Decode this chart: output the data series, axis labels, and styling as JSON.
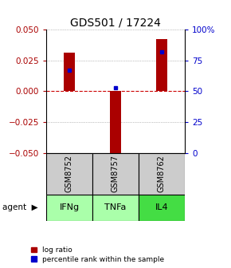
{
  "title": "GDS501 / 17224",
  "samples": [
    "GSM8752",
    "GSM8757",
    "GSM8762"
  ],
  "agents": [
    "IFNg",
    "TNFa",
    "IL4"
  ],
  "agent_colors": [
    "#aaffaa",
    "#aaffaa",
    "#44dd44"
  ],
  "log_ratios": [
    0.031,
    -0.054,
    0.042
  ],
  "percentile_ranks": [
    67,
    53,
    82
  ],
  "ylim_left": [
    -0.05,
    0.05
  ],
  "ylim_right": [
    0,
    100
  ],
  "left_yticks": [
    -0.05,
    -0.025,
    0,
    0.025,
    0.05
  ],
  "right_yticks": [
    0,
    25,
    50,
    75,
    100
  ],
  "right_tick_labels": [
    "0",
    "25",
    "50",
    "75",
    "100%"
  ],
  "bar_color": "#aa0000",
  "percentile_color": "#0000cc",
  "sample_bg_color": "#cccccc",
  "grid_color": "#888888",
  "zero_line_color": "#cc0000",
  "title_fontsize": 10,
  "tick_fontsize": 7.5,
  "legend_fontsize": 6.5,
  "bar_width": 0.25
}
